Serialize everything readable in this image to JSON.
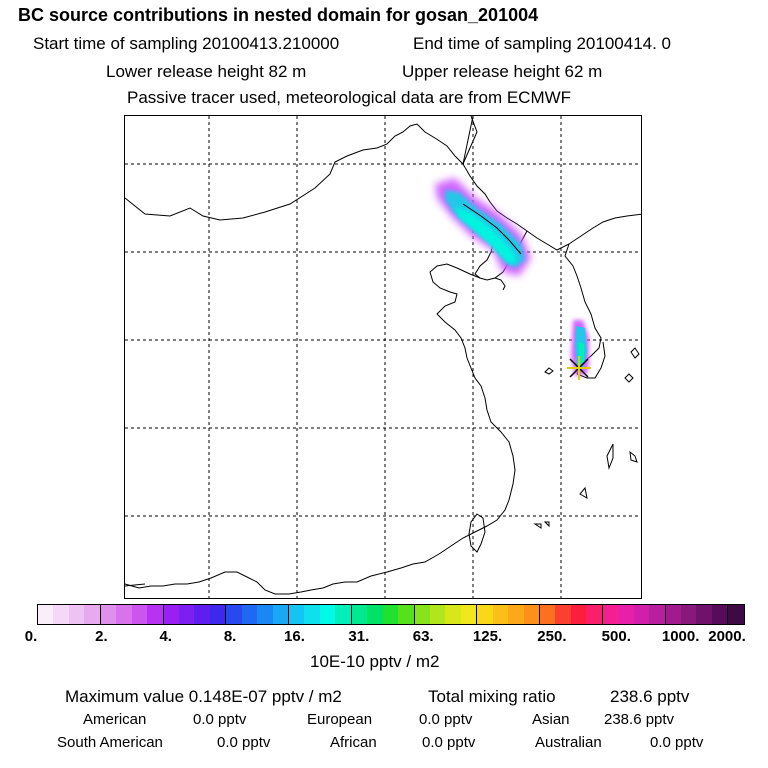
{
  "header": {
    "title": "BC  source contributions in nested domain for gosan_201004",
    "start_label": "Start time of sampling 20100413.210000",
    "end_label": "End time of sampling 20100414.     0",
    "lower_release": "Lower release height   82 m",
    "upper_release": "Upper release height   62 m",
    "tracer_note": "Passive tracer used, meteorological data are from ECMWF"
  },
  "colors": {
    "coast": "#000000",
    "grid": "#000000",
    "plume_low": "#cc55ff",
    "plume_mid": "#22c8e8",
    "plume_core": "#00f5e0",
    "receptor_marker": "#e0d000"
  },
  "map": {
    "receptor_symbol": "✳"
  },
  "colorbar": {
    "swatches": [
      "#fbeefb",
      "#f5d8f7",
      "#eec2f3",
      "#e7aaef",
      "#df8fec",
      "#d873ec",
      "#cc55f0",
      "#b733f3",
      "#9a1ff2",
      "#7c1ff0",
      "#5e1fee",
      "#3f28ee",
      "#2848f0",
      "#1e68f2",
      "#1a88f4",
      "#18a8f4",
      "#15c4f2",
      "#10e0ee",
      "#00fae6",
      "#00f0bb",
      "#00e890",
      "#00e266",
      "#22e030",
      "#55e21b",
      "#88e41a",
      "#b0e61a",
      "#d6e81a",
      "#f0e81a",
      "#f8d818",
      "#fac018",
      "#fca818",
      "#fc9018",
      "#fc7020",
      "#fc4030",
      "#fb1f3b",
      "#fa1f6a",
      "#f41f90",
      "#e81fa8",
      "#d01fa8",
      "#b81f9e",
      "#a01c8e",
      "#88187c",
      "#70126c",
      "#560c58",
      "#3d0a44"
    ],
    "tick_labels": [
      "0.",
      "2.",
      "4.",
      "8.",
      "16.",
      "31.",
      "63.",
      "125.",
      "250.",
      "500.",
      "1000.",
      "2000."
    ],
    "unit_label": "10E-10 pptv / m2"
  },
  "stats": {
    "max_value": "Maximum value  0.148E-07 pptv / m2",
    "total_mixing": "Total mixing ratio",
    "total_value": "238.6 pptv",
    "regions": [
      {
        "name": "American",
        "value": "0.0 pptv"
      },
      {
        "name": "European",
        "value": "0.0 pptv"
      },
      {
        "name": "Asian",
        "value": "238.6 pptv"
      },
      {
        "name": "South American",
        "value": "0.0 pptv"
      },
      {
        "name": "African",
        "value": "0.0 pptv"
      },
      {
        "name": "Australian",
        "value": "0.0 pptv"
      }
    ]
  }
}
